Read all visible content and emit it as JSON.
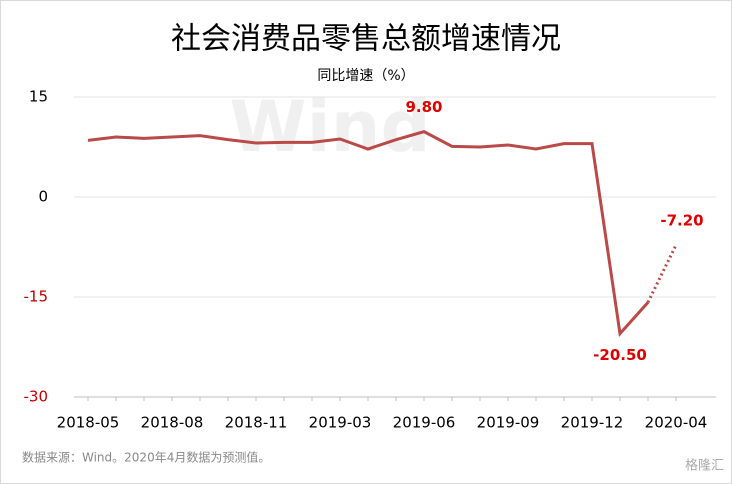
{
  "chart_data": {
    "type": "line",
    "title": "社会消费品零售总额增速情况",
    "subtitle": "同比增速（%）",
    "watermark": "Wind",
    "note": "数据来源：Wind。2020年4月数据为预测值。",
    "logo": "格隆汇",
    "categories": [
      "2018-05",
      null,
      null,
      "2018-08",
      null,
      null,
      "2018-11",
      null,
      null,
      "2019-03",
      null,
      null,
      "2019-06",
      null,
      null,
      "2019-09",
      null,
      null,
      "2019-12",
      null,
      null,
      "2020-04"
    ],
    "series": [
      {
        "name": "同比增速",
        "color": "#b94a48",
        "values": [
          8.5,
          9.0,
          8.8,
          9.0,
          9.2,
          8.6,
          8.1,
          8.2,
          8.2,
          8.7,
          7.2,
          8.6,
          9.8,
          7.6,
          7.5,
          7.8,
          7.2,
          8.0,
          8.0,
          -20.5,
          -15.8,
          -7.2
        ],
        "value_labels": [
          null,
          null,
          null,
          null,
          null,
          null,
          null,
          null,
          null,
          null,
          null,
          null,
          "9.80",
          null,
          null,
          null,
          null,
          null,
          null,
          "-20.50",
          null,
          "-7.20"
        ]
      }
    ],
    "dotted_last_segment": true,
    "label_color": "#e00000",
    "negative_tick_color": "#c00000",
    "ylim": [
      -30,
      15
    ],
    "yticks": [
      -30,
      -15,
      0,
      15
    ],
    "grid": true
  }
}
